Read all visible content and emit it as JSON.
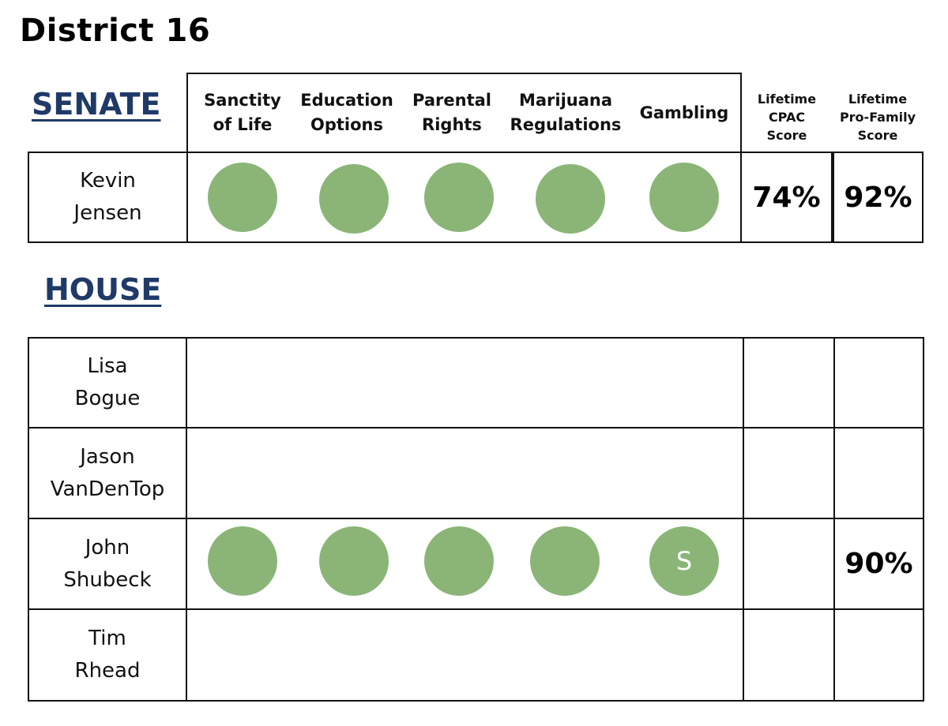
{
  "title": "District 16",
  "senate": {
    "heading": "SENATE",
    "columns": [
      {
        "line1": "Sanctity",
        "line2": "of Life"
      },
      {
        "line1": "Education",
        "line2": "Options"
      },
      {
        "line1": "Parental",
        "line2": "Rights"
      },
      {
        "line1": "Marijuana",
        "line2": "Regulations"
      },
      {
        "line1": "Gambling",
        "line2": ""
      }
    ],
    "score_headers": [
      {
        "line1": "Lifetime",
        "line2": "CPAC",
        "line3": "Score"
      },
      {
        "line1": "Lifetime",
        "line2": "Pro-Family",
        "line3": "Score"
      }
    ],
    "candidates": [
      {
        "first": "Kevin",
        "last": "Jensen",
        "cpac": "74%",
        "pro_family": "92%",
        "dot_labels": [
          "",
          "",
          "",
          "",
          ""
        ]
      }
    ]
  },
  "house": {
    "heading": "HOUSE",
    "candidates": [
      {
        "first": "Lisa",
        "last": "Bogue",
        "cpac": "",
        "pro_family": ""
      },
      {
        "first": "Jason",
        "last": "VanDenTop",
        "cpac": "",
        "pro_family": ""
      },
      {
        "first": "John",
        "last": "Shubeck",
        "cpac": "",
        "pro_family": "90%",
        "dot_labels": [
          "",
          "",
          "",
          "",
          "S"
        ]
      },
      {
        "first": "Tim",
        "last": "Rhead",
        "cpac": "",
        "pro_family": ""
      }
    ]
  },
  "colors": {
    "heading": "#1f3a68",
    "dot": "#8ab577",
    "border": "#111111"
  }
}
